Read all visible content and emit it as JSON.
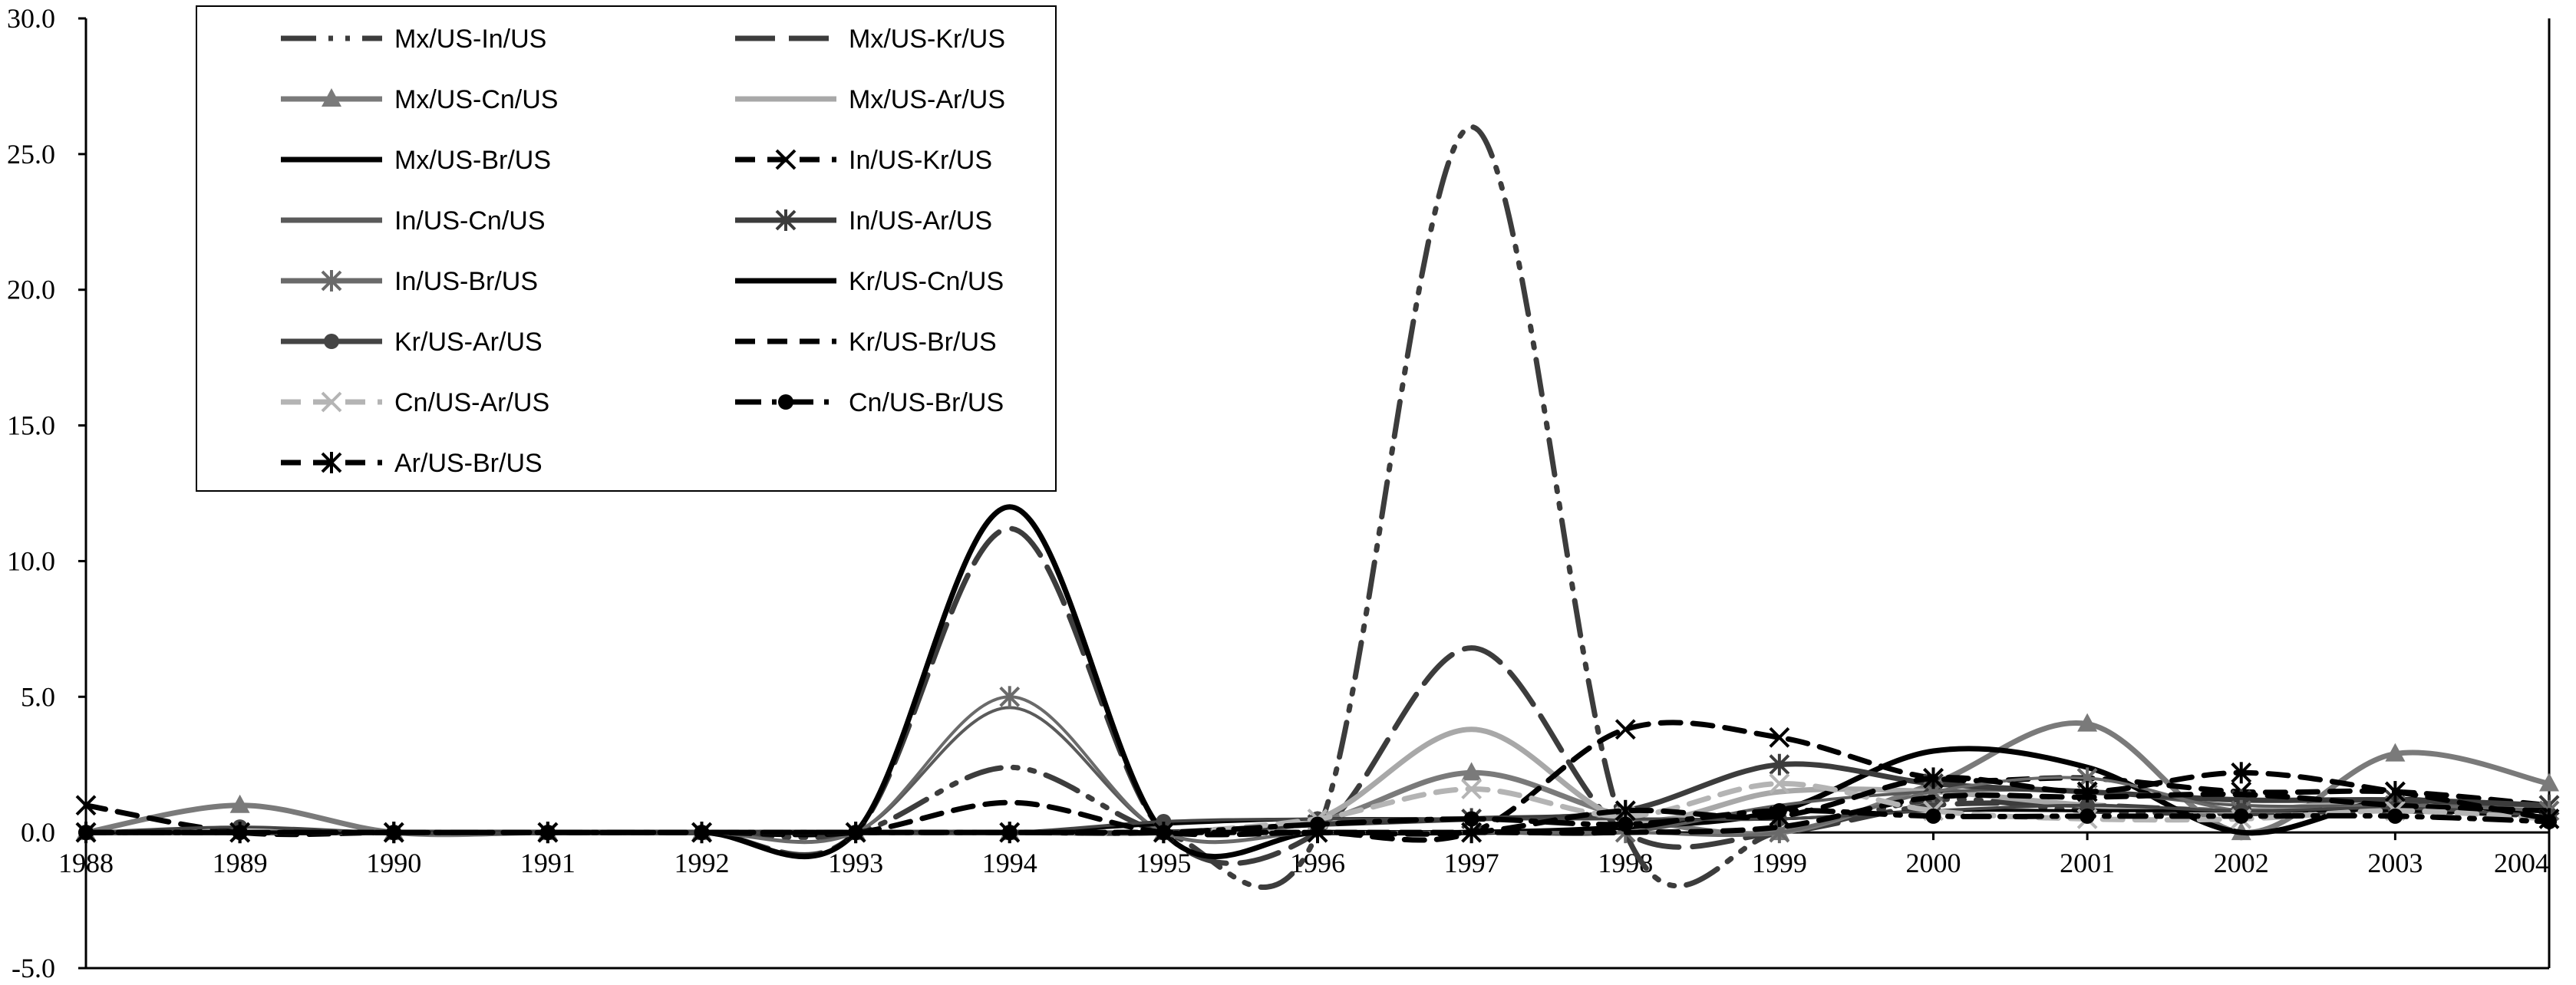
{
  "chart_data": {
    "type": "line",
    "title": "",
    "xlabel": "",
    "ylabel": "",
    "ylim": [
      -5,
      30
    ],
    "xlim": [
      1988,
      2004
    ],
    "y_ticks": [
      -5,
      0,
      5,
      10,
      15,
      20,
      25,
      30
    ],
    "y_tick_labels": [
      "-5.0",
      "0.0",
      "5.0",
      "10.0",
      "15.0",
      "20.0",
      "25.0",
      "30.0"
    ],
    "x_ticks": [
      "1988",
      "1989",
      "1990",
      "1991",
      "1992",
      "1993",
      "1994",
      "1995",
      "1996",
      "1997",
      "1998",
      "1999",
      "2000",
      "2001",
      "2002",
      "2003",
      "2004"
    ],
    "grid": false,
    "legend_position": "top-left",
    "x": [
      1988,
      1989,
      1990,
      1991,
      1992,
      1993,
      1994,
      1995,
      1996,
      1997,
      1998,
      1999,
      2000,
      2001,
      2002,
      2003,
      2004
    ],
    "series": [
      {
        "name": "Mx/US-In/US",
        "color": "#3c3c3c",
        "dash": "dashdotdot",
        "marker": "none",
        "values": [
          0,
          0,
          0,
          0,
          0,
          0,
          2.4,
          0,
          0,
          26,
          0,
          0,
          1.2,
          0.8,
          0.7,
          0.8,
          0.6
        ]
      },
      {
        "name": "Mx/US-Kr/US",
        "color": "#3c3c3c",
        "dash": "longdash",
        "marker": "none",
        "values": [
          0,
          0,
          0,
          0,
          0,
          0,
          11.2,
          0,
          0,
          6.8,
          0,
          0,
          1.0,
          1.0,
          0.8,
          1.0,
          0.8
        ]
      },
      {
        "name": "Mx/US-Cn/US",
        "color": "#7a7a7a",
        "dash": "solid",
        "marker": "triangle",
        "values": [
          0,
          1.0,
          0,
          0,
          0,
          0,
          0,
          0,
          0.4,
          2.2,
          0.6,
          0,
          1.8,
          4.0,
          0,
          2.9,
          1.8
        ]
      },
      {
        "name": "Mx/US-Ar/US",
        "color": "#a8a8a8",
        "dash": "solid",
        "marker": "none",
        "values": [
          0,
          0,
          0,
          0,
          0,
          0,
          0,
          0,
          0.5,
          3.8,
          0.5,
          1.5,
          1.5,
          1.0,
          0.8,
          1.2,
          0.8
        ]
      },
      {
        "name": "Mx/US-Br/US",
        "color": "#000000",
        "dash": "solid",
        "marker": "none",
        "values": [
          0,
          0,
          0,
          0,
          0,
          0,
          12.0,
          0,
          0,
          0,
          0.2,
          0.8,
          3.0,
          2.4,
          0,
          1.2,
          0.5
        ]
      },
      {
        "name": "In/US-Kr/US",
        "color": "#000000",
        "dash": "dashed",
        "marker": "x",
        "values": [
          1.0,
          0,
          0,
          0,
          0,
          0,
          0,
          0,
          0,
          0,
          3.8,
          3.5,
          2.0,
          2.0,
          1.5,
          1.5,
          1.0
        ]
      },
      {
        "name": "In/US-Cn/US",
        "color": "#5a5a5a",
        "dash": "solid",
        "marker": "none",
        "values": [
          0,
          0,
          0,
          0,
          0,
          0,
          4.6,
          0,
          0,
          0,
          0,
          1.0,
          1.5,
          1.5,
          1.0,
          1.0,
          1.0
        ]
      },
      {
        "name": "In/US-Ar/US",
        "color": "#3c3c3c",
        "dash": "solid",
        "marker": "asterisk",
        "values": [
          0,
          0,
          0,
          0,
          0,
          0,
          0,
          0,
          0.3,
          0.5,
          0.8,
          2.5,
          1.8,
          1.5,
          1.2,
          1.2,
          1.0
        ]
      },
      {
        "name": "In/US-Br/US",
        "color": "#6a6a6a",
        "dash": "solid",
        "marker": "asterisk",
        "values": [
          0,
          0,
          0,
          0,
          0,
          0,
          5.0,
          0,
          0,
          0,
          0,
          0,
          1.5,
          2.0,
          0.8,
          1.0,
          0.8
        ]
      },
      {
        "name": "Kr/US-Cn/US",
        "color": "#000000",
        "dash": "solid",
        "marker": "none",
        "values": [
          0,
          0,
          0,
          0,
          0,
          0,
          0,
          0.3,
          0.5,
          0.5,
          0.5,
          0.5,
          0.8,
          0.8,
          0.8,
          0.8,
          0.6
        ]
      },
      {
        "name": "Kr/US-Ar/US",
        "color": "#444444",
        "dash": "solid",
        "marker": "dot",
        "values": [
          0,
          0.2,
          0,
          0,
          0,
          0,
          0,
          0.4,
          0.5,
          0.5,
          0.5,
          0.5,
          0.8,
          1.0,
          0.8,
          0.9,
          0.6
        ]
      },
      {
        "name": "Kr/US-Br/US",
        "color": "#000000",
        "dash": "dashed",
        "marker": "none",
        "values": [
          0,
          0,
          0,
          0,
          0,
          0,
          1.1,
          0,
          0,
          0,
          0,
          0.2,
          1.3,
          1.3,
          1.4,
          1.0,
          0.8
        ]
      },
      {
        "name": "Cn/US-Ar/US",
        "color": "#b4b4b4",
        "dash": "dashed",
        "marker": "x",
        "values": [
          0,
          0,
          0,
          0,
          0,
          0,
          0,
          0,
          0.5,
          1.6,
          0.6,
          1.8,
          0.8,
          0.5,
          0.5,
          0.8,
          0.5
        ]
      },
      {
        "name": "Cn/US-Br/US",
        "color": "#000000",
        "dash": "dashdot",
        "marker": "dot",
        "values": [
          0,
          0,
          0,
          0,
          0,
          0,
          0,
          0,
          0.3,
          0.5,
          0.3,
          0.8,
          0.6,
          0.6,
          0.6,
          0.6,
          0.4
        ]
      },
      {
        "name": "Ar/US-Br/US",
        "color": "#000000",
        "dash": "dashed",
        "marker": "asterisk",
        "values": [
          0,
          0,
          0,
          0,
          0,
          0,
          0,
          0,
          0,
          0,
          0.8,
          0.6,
          2.0,
          1.5,
          2.2,
          1.5,
          0.5
        ]
      }
    ]
  }
}
